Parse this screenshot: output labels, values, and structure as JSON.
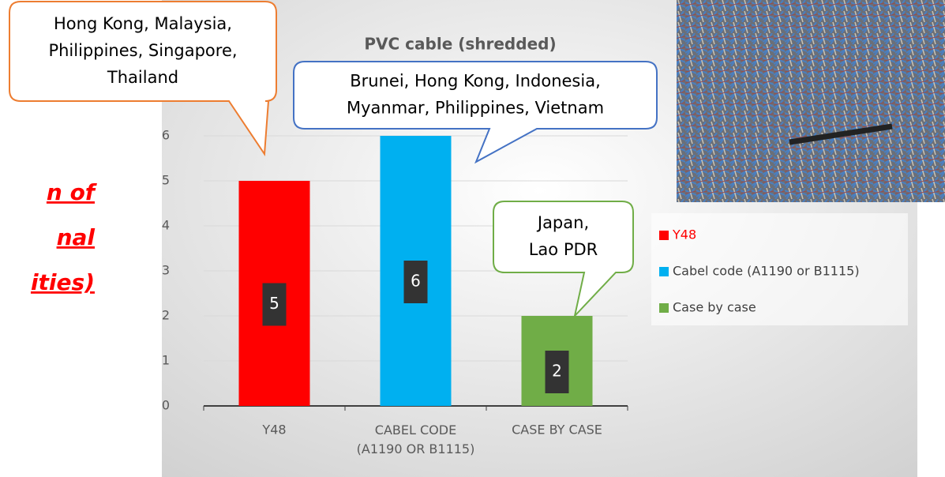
{
  "slide_text": [
    "n of",
    "nal",
    "ities)"
  ],
  "chart_data": {
    "type": "bar",
    "title": "PVC cable (shredded)",
    "categories": [
      "Y48",
      "CABEL CODE (A1190 OR B1115)",
      "CASE BY CASE"
    ],
    "values": [
      5,
      6,
      2
    ],
    "colors": [
      "#ff0000",
      "#00b0f0",
      "#70ad47"
    ],
    "legend": [
      "Y48",
      "Cabel code (A1190 or B1115)",
      "Case by case"
    ],
    "ylim": [
      0,
      6
    ],
    "yticks": [
      0,
      1,
      2,
      3,
      4,
      5,
      6
    ],
    "grid": true,
    "annotations": [
      {
        "lines": [
          "Hong Kong, Malaysia,",
          "Philippines, Singapore,",
          "Thailand"
        ],
        "color": "#ed7d31"
      },
      {
        "lines": [
          "Brunei, Hong Kong, Indonesia,",
          "Myanmar, Philippines, Vietnam"
        ],
        "color": "#4472c4"
      },
      {
        "lines": [
          "Japan,",
          "Lao PDR"
        ],
        "color": "#70ad47"
      }
    ]
  }
}
